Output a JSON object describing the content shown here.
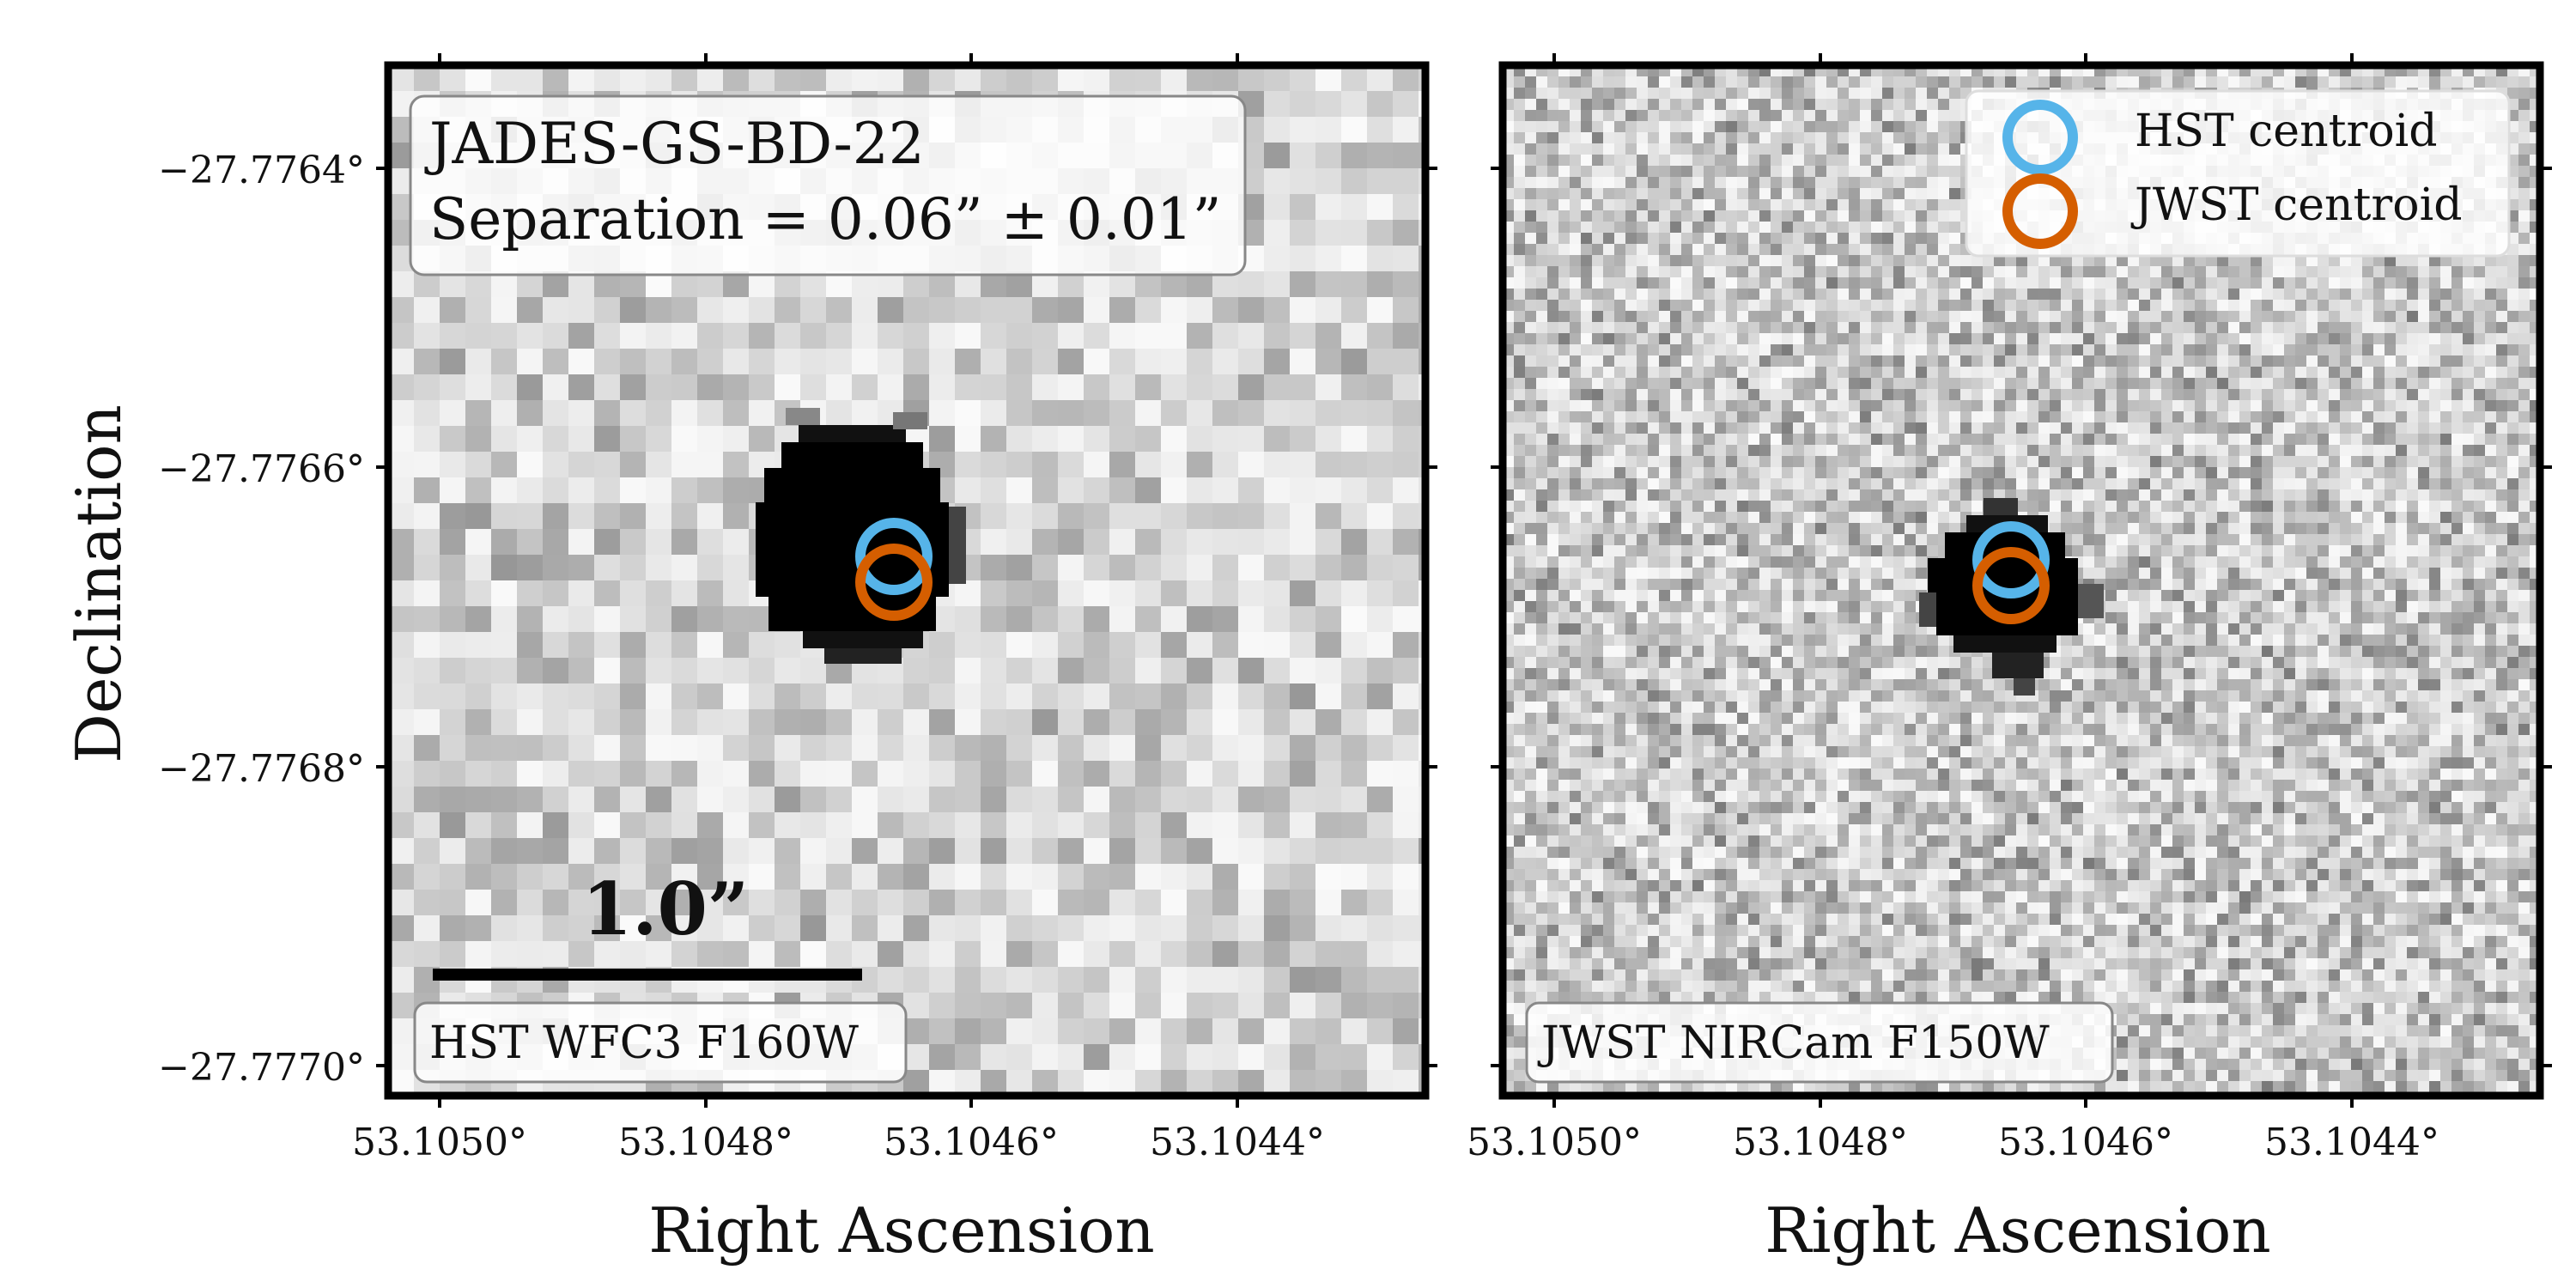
{
  "panels": [
    {
      "id": "hst",
      "box_label": "HST WFC3 F160W",
      "title_lines": [
        "JADES-GS-BD-22",
        "Separation = 0.06” ± 0.01”"
      ],
      "scale_bar_label": "1.0”",
      "x_axis_label": "Right Ascension",
      "y_axis_label": "Declination",
      "x_ticks": [
        "53.1050°",
        "53.1048°",
        "53.1046°",
        "53.1044°"
      ],
      "y_ticks": [
        "−27.7764°",
        "−27.7766°",
        "−27.7768°",
        "−27.7770°"
      ]
    },
    {
      "id": "jwst",
      "box_label": "JWST NIRCam F150W",
      "x_axis_label": "Right Ascension",
      "x_ticks": [
        "53.1050°",
        "53.1048°",
        "53.1046°",
        "53.1044°"
      ]
    }
  ],
  "legend": {
    "items": [
      {
        "label": "HST centroid",
        "color": "#56b4e9"
      },
      {
        "label": "JWST centroid",
        "color": "#d55e00"
      }
    ]
  }
}
